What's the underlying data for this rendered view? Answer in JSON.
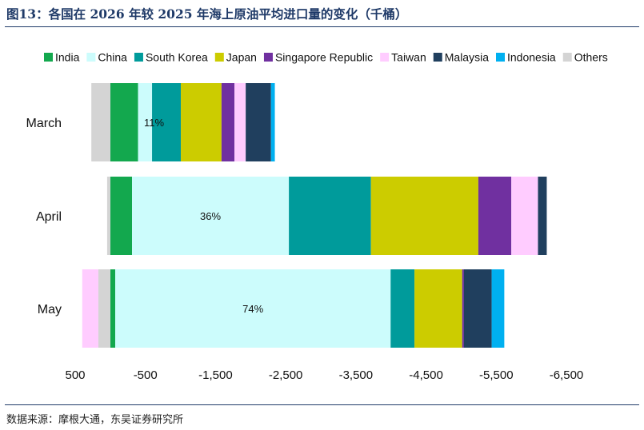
{
  "figure": {
    "title": "图13：各国在 2026 年较 2025 年海上原油平均进口量的变化（千桶）",
    "source": "数据来源：摩根大通，东吴证券研究所"
  },
  "colors": {
    "India": "#13a84e",
    "China": "#ccfcfc",
    "South Korea": "#009b9b",
    "Japan": "#cccc00",
    "Singapore Republic": "#7030a0",
    "Taiwan": "#ffccff",
    "Malaysia": "#203f5e",
    "Indonesia": "#00b0f0",
    "Others": "#d4d4d4",
    "rule": "#1f3a68"
  },
  "chart_data": {
    "type": "bar",
    "orientation": "horizontal",
    "stacked": true,
    "x_axis": {
      "min": -6500,
      "max": 500,
      "reversed": true,
      "ticks": [
        500,
        -500,
        -1500,
        -2500,
        -3500,
        -4500,
        -5500,
        -6500
      ],
      "tick_labels": [
        "500",
        "-500",
        "-1,500",
        "-2,500",
        "-3,500",
        "-4,500",
        "-5,500",
        "-6,500"
      ]
    },
    "grid": false,
    "legend_position": "top",
    "categories": [
      "March",
      "April",
      "May"
    ],
    "series": [
      {
        "name": "India",
        "values": [
          -395,
          -310,
          -70
        ]
      },
      {
        "name": "China",
        "values": [
          -200,
          -2235,
          -3925
        ]
      },
      {
        "name": "South Korea",
        "values": [
          -410,
          -1170,
          -340
        ]
      },
      {
        "name": "Japan",
        "values": [
          -580,
          -1530,
          -680
        ]
      },
      {
        "name": "Singapore Republic",
        "values": [
          -185,
          -470,
          -25
        ]
      },
      {
        "name": "Taiwan",
        "values": [
          -160,
          -380,
          230
        ]
      },
      {
        "name": "Malaysia",
        "values": [
          -360,
          -125,
          -395
        ]
      },
      {
        "name": "Indonesia",
        "values": [
          -55,
          0,
          -180
        ]
      },
      {
        "name": "Others",
        "values": [
          270,
          45,
          170
        ]
      }
    ],
    "annotations": [
      {
        "category": "March",
        "text": "11%"
      },
      {
        "category": "April",
        "text": "36%"
      },
      {
        "category": "May",
        "text": "74%"
      }
    ]
  }
}
